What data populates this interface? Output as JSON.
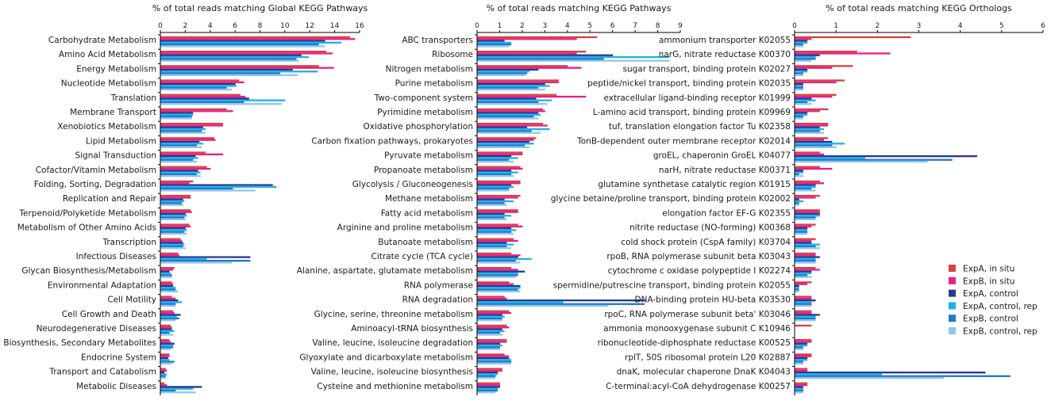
{
  "series": [
    {
      "name": "ExpA, in situ",
      "color": "#d9403f"
    },
    {
      "name": "ExpB, in situ",
      "color": "#e91e8c"
    },
    {
      "name": "ExpA, control",
      "color": "#2b3594"
    },
    {
      "name": "ExpA, control, rep",
      "color": "#1ab3e6"
    },
    {
      "name": "ExpB, control",
      "color": "#1f78c8"
    },
    {
      "name": "ExpB, control, rep",
      "color": "#8ec7ee"
    }
  ],
  "chart_data": [
    {
      "type": "bar",
      "orientation": "horizontal",
      "title": "% of total reads matching Global KEGG Pathways",
      "xlim": [
        0,
        16
      ],
      "ticks": [
        "0",
        "2",
        "4",
        "6",
        "8",
        "10",
        "12",
        "14",
        "16"
      ],
      "categories": [
        "Carbohydrate Metabolism",
        "Amino Acid Metabolism",
        "Energy Metabolism",
        "Nucleotide Metabolism",
        "Translation",
        "Membrane Transport",
        "Xenobiotics Metabolism",
        "Lipid Metabolism",
        "Signal Transduction",
        "Cofactor/Vitamin Metabolism",
        "Folding, Sorting, Degradation",
        "Replication and Repair",
        "Terpenoid/Polyketide Metabolism",
        "Metabolism of Other Amino Acids",
        "Transcription",
        "Infectious Diseases",
        "Glycan Biosynthesis/Metabolism",
        "Environmental Adaptation",
        "Cell Motility",
        "Cell Growth and Death",
        "Neurodegenerative Diseases",
        "Biosynthesis, Secondary Metabolites",
        "Endocrine System",
        "Transport and Catabolism",
        "Metabolic Diseases"
      ],
      "series": [
        {
          "name": "ExpA, in situ",
          "values": [
            15.2,
            13.3,
            12.7,
            6.3,
            6.4,
            5.3,
            5.0,
            4.3,
            3.6,
            3.7,
            2.6,
            2.4,
            2.4,
            2.3,
            1.6,
            1.4,
            1.1,
            0.9,
            0.9,
            1.0,
            0.8,
            0.7,
            0.7,
            0.4,
            0.3
          ]
        },
        {
          "name": "ExpB, in situ",
          "values": [
            15.6,
            13.8,
            13.9,
            6.7,
            6.8,
            5.8,
            5.0,
            4.4,
            5.0,
            4.0,
            2.3,
            2.4,
            2.5,
            2.4,
            1.7,
            1.5,
            1.0,
            1.0,
            1.2,
            1.1,
            0.9,
            0.8,
            0.7,
            0.5,
            0.5
          ]
        },
        {
          "name": "ExpA, control",
          "values": [
            13.2,
            11.3,
            10.6,
            6.0,
            7.1,
            2.6,
            3.4,
            3.1,
            2.8,
            3.0,
            9.0,
            1.8,
            2.0,
            2.0,
            1.8,
            7.2,
            0.7,
            1.0,
            1.4,
            1.6,
            0.9,
            1.1,
            0.6,
            0.3,
            3.3
          ]
        },
        {
          "name": "ExpA, control, rep",
          "values": [
            14.5,
            11.9,
            12.6,
            6.1,
            10.0,
            2.6,
            3.6,
            3.4,
            3.0,
            3.2,
            9.3,
            1.9,
            2.1,
            2.1,
            1.9,
            3.7,
            0.8,
            1.2,
            1.7,
            1.3,
            1.1,
            1.0,
            0.7,
            0.5,
            2.6
          ]
        },
        {
          "name": "ExpB, control",
          "values": [
            12.7,
            10.9,
            9.6,
            5.3,
            6.7,
            2.5,
            3.3,
            2.9,
            2.6,
            2.9,
            5.8,
            1.7,
            1.9,
            1.9,
            1.8,
            7.2,
            0.9,
            1.2,
            1.2,
            1.5,
            0.7,
            1.0,
            1.1,
            0.4,
            1.2
          ]
        },
        {
          "name": "ExpB, control, rep",
          "values": [
            13.2,
            11.1,
            11.0,
            5.7,
            9.7,
            2.5,
            3.6,
            3.3,
            2.9,
            3.2,
            7.6,
            1.8,
            2.0,
            2.1,
            2.0,
            5.7,
            0.9,
            1.4,
            1.2,
            1.2,
            1.0,
            0.8,
            0.9,
            0.4,
            2.8
          ]
        }
      ]
    },
    {
      "type": "bar",
      "orientation": "horizontal",
      "title": "% of total reads matching KEGG Pathways",
      "xlim": [
        0,
        9
      ],
      "ticks": [
        "0",
        "1",
        "2",
        "3",
        "4",
        "5",
        "6",
        "7",
        "8",
        "9"
      ],
      "categories": [
        "ABC transporters",
        "Ribosome",
        "Nitrogen metabolism",
        "Purine metabolism",
        "Two-component system",
        "Pyrimidine metabolism",
        "Oxidative phosphorylation",
        "Carbon fixation pathways, prokaryotes",
        "Pyruvate metabolism",
        "Propanoate metabolism",
        "Glycolysis / Gluconeogenesis",
        "Methane metabolism",
        "Fatty acid metabolism",
        "Arginine and proline metabolism",
        "Butanoate metabolism",
        "Citrate cycle (TCA cycle)",
        "Alanine, aspartate, glutamate metabolism",
        "RNA polymerase",
        "RNA degradation",
        "Glycine, serine, threonine metabolism",
        "Aminoacyl-tRNA biosynthesis",
        "Valine, leucine, isoleucine degradation",
        "Glyoxylate and dicarboxylate metabolism",
        "Valine, leucine, isoleucine biosynthesis",
        "Cysteine and methionine metabolism"
      ],
      "series": [
        {
          "name": "ExpA, in situ",
          "values": [
            5.3,
            4.8,
            4.0,
            3.6,
            3.5,
            2.9,
            2.9,
            2.6,
            2.0,
            1.9,
            1.9,
            1.9,
            1.8,
            1.8,
            1.6,
            1.5,
            1.5,
            1.4,
            1.2,
            1.4,
            1.3,
            1.3,
            1.2,
            1.1,
            1.0
          ]
        },
        {
          "name": "ExpB, in situ",
          "values": [
            4.4,
            4.4,
            4.6,
            3.6,
            4.8,
            3.0,
            3.1,
            2.5,
            2.0,
            2.0,
            1.9,
            1.8,
            1.8,
            2.0,
            1.8,
            1.9,
            1.8,
            1.6,
            1.3,
            1.5,
            1.4,
            1.3,
            1.4,
            1.1,
            1.0
          ]
        },
        {
          "name": "ExpA, control",
          "values": [
            1.2,
            6.0,
            2.7,
            3.0,
            2.6,
            2.7,
            2.2,
            2.3,
            1.5,
            1.5,
            1.5,
            1.2,
            1.2,
            1.5,
            1.3,
            1.8,
            2.1,
            1.9,
            7.4,
            1.1,
            1.1,
            1.0,
            1.4,
            0.9,
            1.0
          ]
        },
        {
          "name": "ExpA, control, rep",
          "values": [
            1.5,
            8.5,
            2.3,
            3.2,
            3.3,
            2.8,
            3.2,
            2.5,
            1.8,
            1.8,
            1.6,
            1.6,
            1.5,
            1.7,
            1.6,
            2.4,
            1.8,
            1.9,
            3.8,
            1.2,
            1.2,
            1.1,
            1.5,
            0.9,
            0.9
          ]
        },
        {
          "name": "ExpB, control",
          "values": [
            1.5,
            5.6,
            2.2,
            2.7,
            2.7,
            2.5,
            2.4,
            2.1,
            1.4,
            1.5,
            1.4,
            1.2,
            1.2,
            1.5,
            1.3,
            1.7,
            1.8,
            1.8,
            7.4,
            1.1,
            1.0,
            1.0,
            1.5,
            0.8,
            0.9
          ]
        },
        {
          "name": "ExpB, control, rep",
          "values": [
            1.4,
            8.5,
            2.1,
            3.0,
            3.1,
            2.7,
            2.8,
            2.3,
            1.6,
            1.6,
            1.4,
            1.3,
            1.3,
            1.6,
            1.5,
            1.9,
            1.7,
            1.9,
            5.8,
            1.1,
            1.1,
            1.0,
            1.5,
            0.8,
            0.8
          ]
        }
      ]
    },
    {
      "type": "bar",
      "orientation": "horizontal",
      "title": "% of total reads matching KEGG Orthologs",
      "xlim": [
        0,
        6
      ],
      "ticks": [
        "0",
        "1",
        "2",
        "3",
        "4",
        "5",
        "6"
      ],
      "categories": [
        "ammonium transporter K02055",
        "narG, nitrate reductase K00370",
        "sugar transport, binding protein K02027",
        "peptide/nickel transport, binding protein K02035",
        "extracellular ligand-binding receptor K01999",
        "L-amino acid transport, binding protein K09969",
        "tuf, translation elongation factor Tu K02358",
        "TonB-dependent outer membrane receptor K02014",
        "groEL, chaperonin GroEL K04077",
        "narH, nitrate reductase K00371",
        "glutamine synthetase catalytic region K01915",
        "glycine betaine/proline transport, binding protein K02002",
        "elongation factor EF-G K02355",
        "nitrite reductase (NO-forming) K00368",
        "cold shock protein (CspA family) K03704",
        "rpoB, RNA polymerase subunit beta K03043",
        "cytochrome c oxidase polypeptide I K02274",
        "spermidine/putrescine transport, binding protein K02055",
        "DNA-binding protein HU-beta K03530",
        "rpoC, RNA polymerase subunit beta' K03046",
        "ammonia monooxygenase subunit C K10946",
        "ribonucleotide-diphosphate reductase K00525",
        "rplT, 50S ribosomal protein L20 K02887",
        "dnaK, molecular chaperone DnaK K04043",
        "C-terminal:acyl-CoA dehydrogenase K00257"
      ],
      "series": [
        {
          "name": "ExpA, in situ",
          "values": [
            2.8,
            1.5,
            1.4,
            1.2,
            1.0,
            0.8,
            0.8,
            0.8,
            0.6,
            0.6,
            0.6,
            0.6,
            0.6,
            0.5,
            0.5,
            0.5,
            0.5,
            0.4,
            0.4,
            0.4,
            0.4,
            0.4,
            0.4,
            0.3,
            0.3
          ]
        },
        {
          "name": "ExpB, in situ",
          "values": [
            0.4,
            2.3,
            0.9,
            1.0,
            0.9,
            0.6,
            0.8,
            0.7,
            0.7,
            0.9,
            0.7,
            0.5,
            0.6,
            0.4,
            0.4,
            0.5,
            0.6,
            0.3,
            0.4,
            0.4,
            0.0,
            0.4,
            0.4,
            0.3,
            0.3
          ]
        },
        {
          "name": "ExpA, control",
          "values": [
            0.3,
            0.6,
            0.3,
            0.2,
            0.4,
            0.3,
            0.6,
            0.9,
            4.4,
            0.2,
            0.5,
            0.1,
            0.6,
            0.3,
            0.4,
            0.6,
            0.4,
            0.1,
            0.5,
            0.6,
            0.0,
            0.3,
            0.3,
            4.6,
            0.2
          ]
        },
        {
          "name": "ExpA, control, rep",
          "values": [
            0.3,
            0.5,
            0.3,
            0.2,
            0.5,
            0.3,
            0.7,
            1.2,
            1.7,
            0.2,
            0.5,
            0.2,
            0.6,
            0.3,
            0.6,
            0.5,
            0.4,
            0.1,
            0.4,
            0.5,
            0.0,
            0.3,
            0.3,
            2.1,
            0.2
          ]
        },
        {
          "name": "ExpB, control",
          "values": [
            0.2,
            0.5,
            0.2,
            0.2,
            0.3,
            0.2,
            0.6,
            0.9,
            3.8,
            0.1,
            0.4,
            0.1,
            0.5,
            0.3,
            0.5,
            0.5,
            0.3,
            0.1,
            0.4,
            0.5,
            0.0,
            0.2,
            0.2,
            5.2,
            0.2
          ]
        },
        {
          "name": "ExpB, control, rep",
          "values": [
            0.2,
            0.4,
            0.2,
            0.2,
            0.4,
            0.2,
            0.7,
            1.0,
            3.2,
            0.2,
            0.5,
            0.1,
            0.5,
            0.3,
            0.6,
            0.5,
            0.4,
            0.1,
            0.4,
            0.5,
            0.0,
            0.2,
            0.2,
            3.6,
            0.2
          ]
        }
      ]
    }
  ]
}
